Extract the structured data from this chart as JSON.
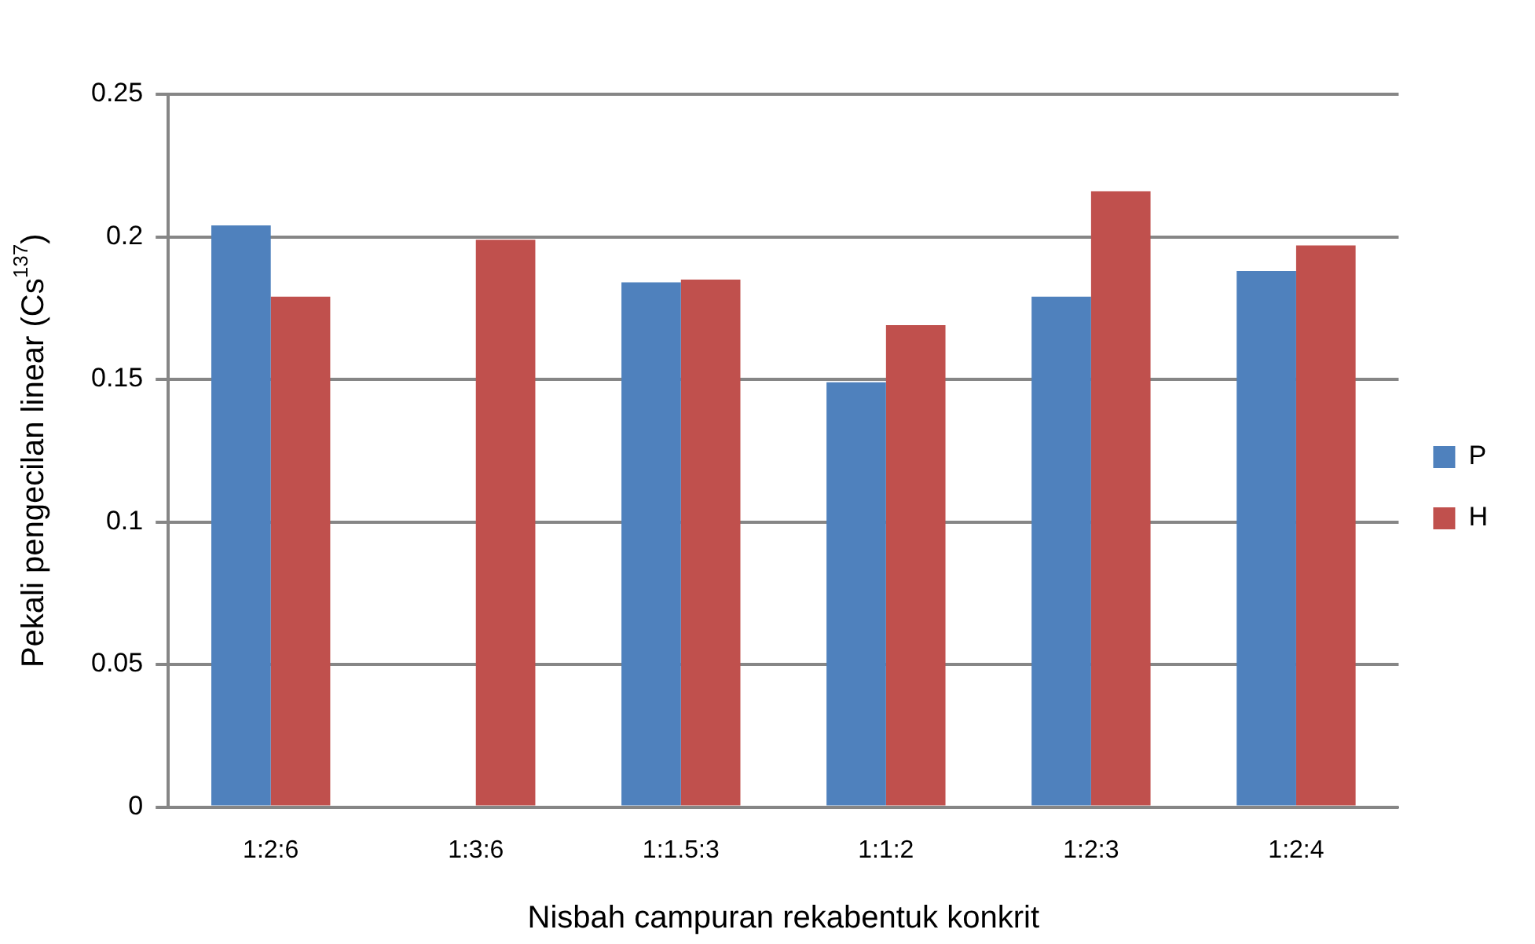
{
  "chart_data": {
    "type": "bar",
    "xlabel": "Nisbah campuran rekabentuk konkrit",
    "ylabel": "Pekali pengecilan linear (Cs$^{137}$)",
    "categories": [
      "1:2:6",
      "1:3:6",
      "1:1.5:3",
      "1:1:2",
      "1:2:3",
      "1:2:4"
    ],
    "series": [
      {
        "name": "P",
        "color": "#4f81bd",
        "values": [
          0.204,
          0,
          0.184,
          0.149,
          0.179,
          0.188
        ]
      },
      {
        "name": "H",
        "color": "#c0504d",
        "values": [
          0.179,
          0.199,
          0.185,
          0.169,
          0.216,
          0.197
        ]
      }
    ],
    "ylim": [
      0,
      0.25
    ],
    "yticks": [
      0,
      0.05,
      0.1,
      0.15,
      0.2,
      0.25
    ],
    "grid": "y",
    "legend": "right"
  }
}
